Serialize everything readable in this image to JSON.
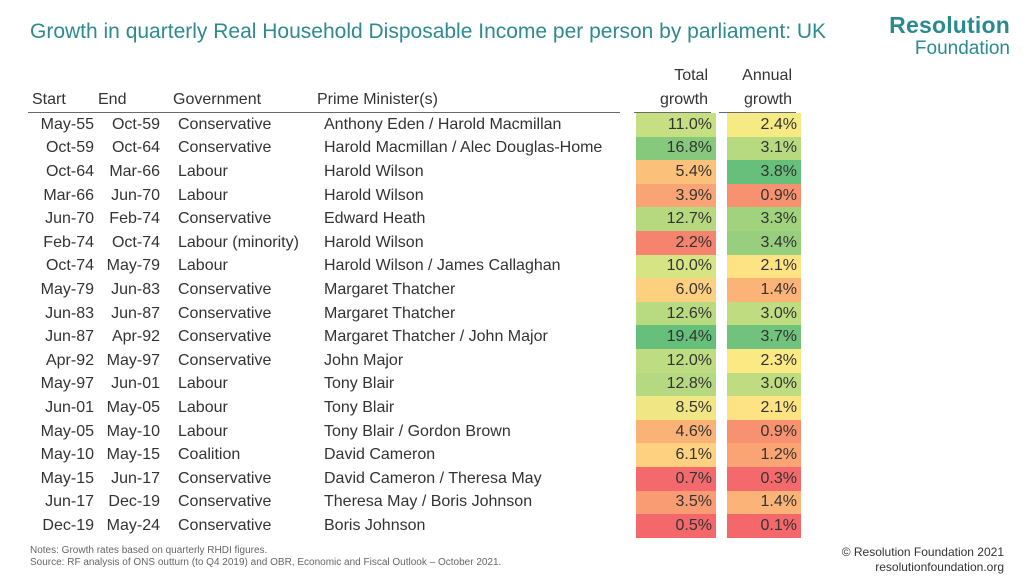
{
  "title": "Growth in quarterly Real Household Disposable Income per person by parliament: UK",
  "logo": {
    "line1": "Resolution",
    "line2": "Foundation"
  },
  "headers": {
    "start": "Start",
    "end": "End",
    "government": "Government",
    "pm": "Prime Minister(s)",
    "total_top": "Total",
    "total_bottom": "growth",
    "annual_top": "Annual",
    "annual_bottom": "growth"
  },
  "rows": [
    {
      "start": "May-55",
      "end": "Oct-59",
      "gov": "Conservative",
      "pm": "Anthony Eden / Harold Macmillan",
      "total": "11.0%",
      "annual": "2.4%",
      "total_color": "#c5df82",
      "annual_color": "#f6ea84"
    },
    {
      "start": "Oct-59",
      "end": "Oct-64",
      "gov": "Conservative",
      "pm": "Harold Macmillan / Alec Douglas-Home",
      "total": "16.8%",
      "annual": "3.1%",
      "total_color": "#86c97c",
      "annual_color": "#b7da80"
    },
    {
      "start": "Oct-64",
      "end": "Mar-66",
      "gov": "Labour",
      "pm": "Harold Wilson",
      "total": "5.4%",
      "annual": "3.8%",
      "total_color": "#fbc17a",
      "annual_color": "#66bf7b"
    },
    {
      "start": "Mar-66",
      "end": "Jun-70",
      "gov": "Labour",
      "pm": "Harold Wilson",
      "total": "3.9%",
      "annual": "0.9%",
      "total_color": "#f9a475",
      "annual_color": "#f8916f"
    },
    {
      "start": "Jun-70",
      "end": "Feb-74",
      "gov": "Conservative",
      "pm": "Edward Heath",
      "total": "12.7%",
      "annual": "3.3%",
      "total_color": "#b6d980",
      "annual_color": "#a1d37e"
    },
    {
      "start": "Feb-74",
      "end": "Oct-74",
      "gov": "Labour (minority)",
      "pm": "Harold Wilson",
      "total": "2.2%",
      "annual": "3.4%",
      "total_color": "#f6836d",
      "annual_color": "#97cf7e"
    },
    {
      "start": "Oct-74",
      "end": "May-79",
      "gov": "Labour",
      "pm": "Harold Wilson / James Callaghan",
      "total": "10.0%",
      "annual": "2.1%",
      "total_color": "#d7e483",
      "annual_color": "#fde383"
    },
    {
      "start": "May-79",
      "end": "Jun-83",
      "gov": "Conservative",
      "pm": "Margaret Thatcher",
      "total": "6.0%",
      "annual": "1.4%",
      "total_color": "#fdd07f",
      "annual_color": "#fbb377"
    },
    {
      "start": "Jun-83",
      "end": "Jun-87",
      "gov": "Conservative",
      "pm": "Margaret Thatcher",
      "total": "12.6%",
      "annual": "3.0%",
      "total_color": "#b8da80",
      "annual_color": "#bfdc81"
    },
    {
      "start": "Jun-87",
      "end": "Apr-92",
      "gov": "Conservative",
      "pm": "Margaret Thatcher / John Major",
      "total": "19.4%",
      "annual": "3.7%",
      "total_color": "#66bf7b",
      "annual_color": "#71c27c"
    },
    {
      "start": "Apr-92",
      "end": "May-97",
      "gov": "Conservative",
      "pm": "John Major",
      "total": "12.0%",
      "annual": "2.3%",
      "total_color": "#bedc81",
      "annual_color": "#fbe983"
    },
    {
      "start": "May-97",
      "end": "Jun-01",
      "gov": "Labour",
      "pm": "Tony Blair",
      "total": "12.8%",
      "annual": "3.0%",
      "total_color": "#b5d980",
      "annual_color": "#bfdc81"
    },
    {
      "start": "Jun-01",
      "end": "May-05",
      "gov": "Labour",
      "pm": "Tony Blair",
      "total": "8.5%",
      "annual": "2.1%",
      "total_color": "#f0e784",
      "annual_color": "#fde383"
    },
    {
      "start": "May-05",
      "end": "May-10",
      "gov": "Labour",
      "pm": "Tony Blair / Gordon Brown",
      "total": "4.6%",
      "annual": "0.9%",
      "total_color": "#fab277",
      "annual_color": "#f8916f"
    },
    {
      "start": "May-10",
      "end": "May-15",
      "gov": "Coalition",
      "pm": "David Cameron",
      "total": "6.1%",
      "annual": "1.2%",
      "total_color": "#fdd17f",
      "annual_color": "#faa474"
    },
    {
      "start": "May-15",
      "end": "Jun-17",
      "gov": "Conservative",
      "pm": "David Cameron / Theresa May",
      "total": "0.7%",
      "annual": "0.3%",
      "total_color": "#f46a6c",
      "annual_color": "#f46a6c"
    },
    {
      "start": "Jun-17",
      "end": "Dec-19",
      "gov": "Conservative",
      "pm": "Theresa May / Boris Johnson",
      "total": "3.5%",
      "annual": "1.4%",
      "total_color": "#f99c73",
      "annual_color": "#fbb377"
    },
    {
      "start": "Dec-19",
      "end": "May-24",
      "gov": "Conservative",
      "pm": "Boris Johnson",
      "total": "0.5%",
      "annual": "0.1%",
      "total_color": "#f4686b",
      "annual_color": "#f4686b"
    }
  ],
  "notes": {
    "line1": "Notes: Growth rates based on quarterly RHDI figures.",
    "line2": "Source: RF analysis of ONS outturn (to Q4 2019) and OBR, Economic and Fiscal Outlook – October 2021."
  },
  "copyright": {
    "line1": "© Resolution Foundation 2021",
    "line2": "resolutionfoundation.org"
  }
}
